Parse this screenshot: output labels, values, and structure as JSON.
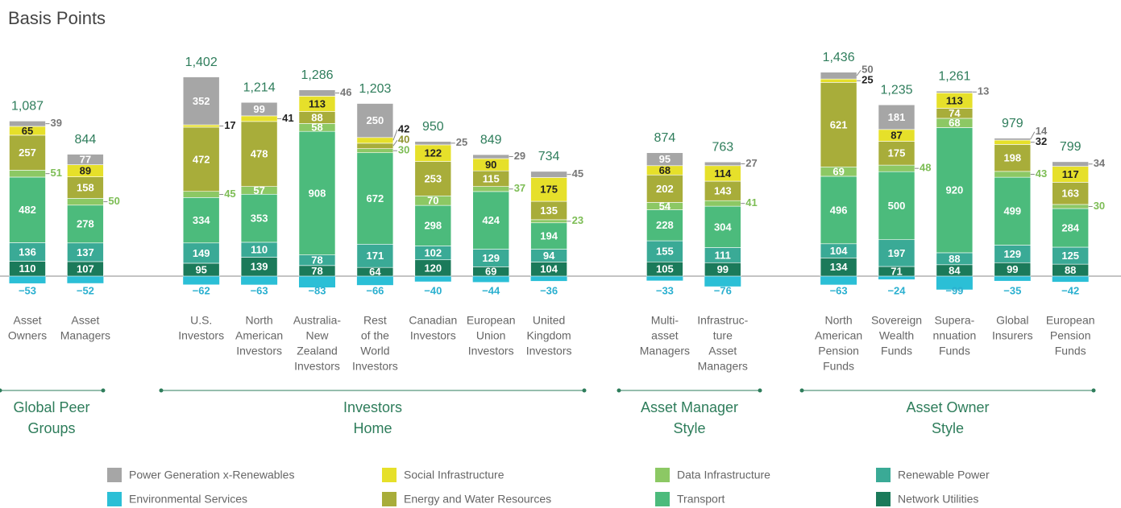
{
  "chart_data": {
    "type": "stacked-bar",
    "y_axis_label": "Basis Points",
    "categories": [
      [
        "Asset",
        "Owners"
      ],
      [
        "Asset",
        "Managers"
      ],
      [
        "U.S.",
        "Investors"
      ],
      [
        "North",
        "American",
        "Investors"
      ],
      [
        "Australia-",
        "New",
        "Zealand",
        "Investors"
      ],
      [
        "Rest",
        "of the",
        "World",
        "Investors"
      ],
      [
        "Canadian",
        "Investors"
      ],
      [
        "European",
        "Union",
        "Investors"
      ],
      [
        "United",
        "Kingdom",
        "Investors"
      ],
      [
        "Multi-",
        "asset",
        "Managers"
      ],
      [
        "Infrastruc-",
        "ture",
        "Asset",
        "Managers"
      ],
      [
        "North",
        "American",
        "Pension",
        "Funds"
      ],
      [
        "Sovereign",
        "Wealth",
        "Funds"
      ],
      [
        "Supera-",
        "nnuation",
        "Funds"
      ],
      [
        "Global",
        "Insurers"
      ],
      [
        "European",
        "Pension",
        "Funds"
      ]
    ],
    "groups": [
      [
        "Global Peer",
        "Groups"
      ],
      [
        "Investors",
        "Home"
      ],
      [
        "Asset Manager",
        "Style"
      ],
      [
        "Asset Owner",
        "Style"
      ]
    ],
    "series": [
      {
        "name": "Environmental Services",
        "color": "#2bbfd6",
        "label_color": "#2bb0d0",
        "values": [
          -53,
          -52,
          -62,
          -63,
          -83,
          -66,
          -40,
          -44,
          -36,
          -33,
          -76,
          -63,
          -24,
          -99,
          -35,
          -42
        ],
        "value_labels": [
          "−53",
          "−52",
          "−62",
          "−63",
          "−83",
          "−66",
          "−40",
          "−44",
          "−36",
          "−33",
          "−76",
          "−63",
          "−24",
          "−99",
          "−35",
          "−42"
        ]
      },
      {
        "name": "Network Utilities",
        "color": "#1b7a5a",
        "label_color": "#1b6e50",
        "values": [
          110,
          107,
          95,
          139,
          78,
          64,
          120,
          69,
          104,
          105,
          99,
          134,
          71,
          84,
          99,
          88
        ]
      },
      {
        "name": "Renewable Power",
        "color": "#3aaa96",
        "label_color": "#3aaa96",
        "values": [
          136,
          137,
          149,
          110,
          78,
          171,
          102,
          129,
          94,
          155,
          111,
          104,
          197,
          88,
          129,
          125
        ]
      },
      {
        "name": "Transport",
        "color": "#4cbb7c",
        "label_color": "#4cbb7c",
        "values": [
          482,
          278,
          334,
          353,
          908,
          672,
          298,
          424,
          194,
          228,
          304,
          496,
          500,
          920,
          499,
          284
        ]
      },
      {
        "name": "Data Infrastructure",
        "color": "#8cc864",
        "label_color": "#7dbd55",
        "values": [
          51,
          50,
          45,
          57,
          58,
          30,
          70,
          37,
          23,
          54,
          41,
          69,
          48,
          68,
          43,
          30
        ]
      },
      {
        "name": "Energy and Water Resources",
        "color": "#a8ad3a",
        "label_color": "#8f9430",
        "values": [
          257,
          158,
          472,
          478,
          88,
          40,
          253,
          115,
          135,
          202,
          143,
          621,
          175,
          74,
          198,
          163
        ]
      },
      {
        "name": "Social Infrastructure",
        "color": "#e6e02a",
        "label_color": "#222",
        "values": [
          65,
          89,
          17,
          41,
          113,
          42,
          122,
          90,
          175,
          68,
          114,
          25,
          87,
          113,
          32,
          117
        ]
      },
      {
        "name": "Power Generation x-Renewables",
        "color": "#a6a6a6",
        "label_color": "#777",
        "values": [
          39,
          77,
          352,
          99,
          46,
          250,
          25,
          29,
          45,
          95,
          27,
          50,
          181,
          13,
          14,
          34
        ]
      }
    ],
    "totals": [
      1087,
      844,
      1402,
      1214,
      1286,
      1203,
      950,
      849,
      734,
      874,
      763,
      1436,
      1235,
      1261,
      979,
      799
    ],
    "total_labels": [
      "1,087",
      "844",
      "1,402",
      "1,214",
      "1,286",
      "1,203",
      "950",
      "849",
      "734",
      "874",
      "763",
      "1,436",
      "1,235",
      "1,261",
      "979",
      "799"
    ]
  }
}
